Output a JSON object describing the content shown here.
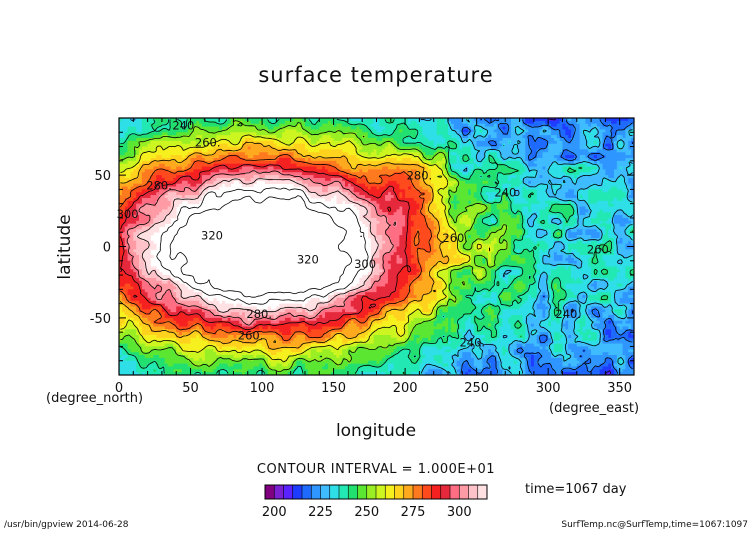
{
  "chart_data": {
    "type": "heatmap",
    "title": "surface temperature",
    "xlabel": "longitude",
    "ylabel": "latitude",
    "x_unit": "(degree_east)",
    "y_unit": "(degree_north)",
    "xlim": [
      0,
      360
    ],
    "ylim": [
      -90,
      90
    ],
    "x_ticks": [
      0,
      50,
      100,
      150,
      200,
      250,
      300,
      350
    ],
    "y_ticks": [
      -50,
      0,
      50
    ],
    "contour_interval_text": "CONTOUR INTERVAL = 1.000E+01",
    "contour_labels": [
      {
        "text": "240",
        "lon": 45,
        "lat": 82
      },
      {
        "text": "260.",
        "lon": 62,
        "lat": 70
      },
      {
        "text": "280.",
        "lon": 28,
        "lat": 40
      },
      {
        "text": "300",
        "lon": 6,
        "lat": 20
      },
      {
        "text": "320",
        "lon": 65,
        "lat": 5
      },
      {
        "text": "320",
        "lon": 132,
        "lat": -12
      },
      {
        "text": "300",
        "lon": 172,
        "lat": -15
      },
      {
        "text": "280.",
        "lon": 210,
        "lat": 47
      },
      {
        "text": "240",
        "lon": 270,
        "lat": 35
      },
      {
        "text": "260.",
        "lon": 235,
        "lat": 3
      },
      {
        "text": "260.",
        "lon": 336,
        "lat": -5
      },
      {
        "text": "280.",
        "lon": 98,
        "lat": -50
      },
      {
        "text": "260.",
        "lon": 92,
        "lat": -65
      },
      {
        "text": "240.",
        "lon": 314,
        "lat": -50
      },
      {
        "text": "240.",
        "lon": 247,
        "lat": -70
      }
    ],
    "colorbar": {
      "min": 200,
      "max": 320,
      "step": 5,
      "ticks": [
        200,
        225,
        250,
        275,
        300
      ],
      "colors": [
        "#800080",
        "#7a1fd1",
        "#5a22ff",
        "#1e3cff",
        "#1e6aff",
        "#2f96ff",
        "#3fbcff",
        "#2edfe8",
        "#22e8b4",
        "#22e070",
        "#5be632",
        "#99ef24",
        "#cdf520",
        "#f5f01e",
        "#ffd21e",
        "#ffaa1e",
        "#ff7a1e",
        "#ff4a1e",
        "#f52020",
        "#e6283c",
        "#ff6e82",
        "#ff9ba5",
        "#ffc2c8",
        "#ffe0e3"
      ]
    },
    "time_text": "time=1067 day"
  },
  "footer": {
    "left": "/usr/bin/gpview  2014-06-28",
    "right": "SurfTemp.nc@SurfTemp,time=1067:1097"
  }
}
